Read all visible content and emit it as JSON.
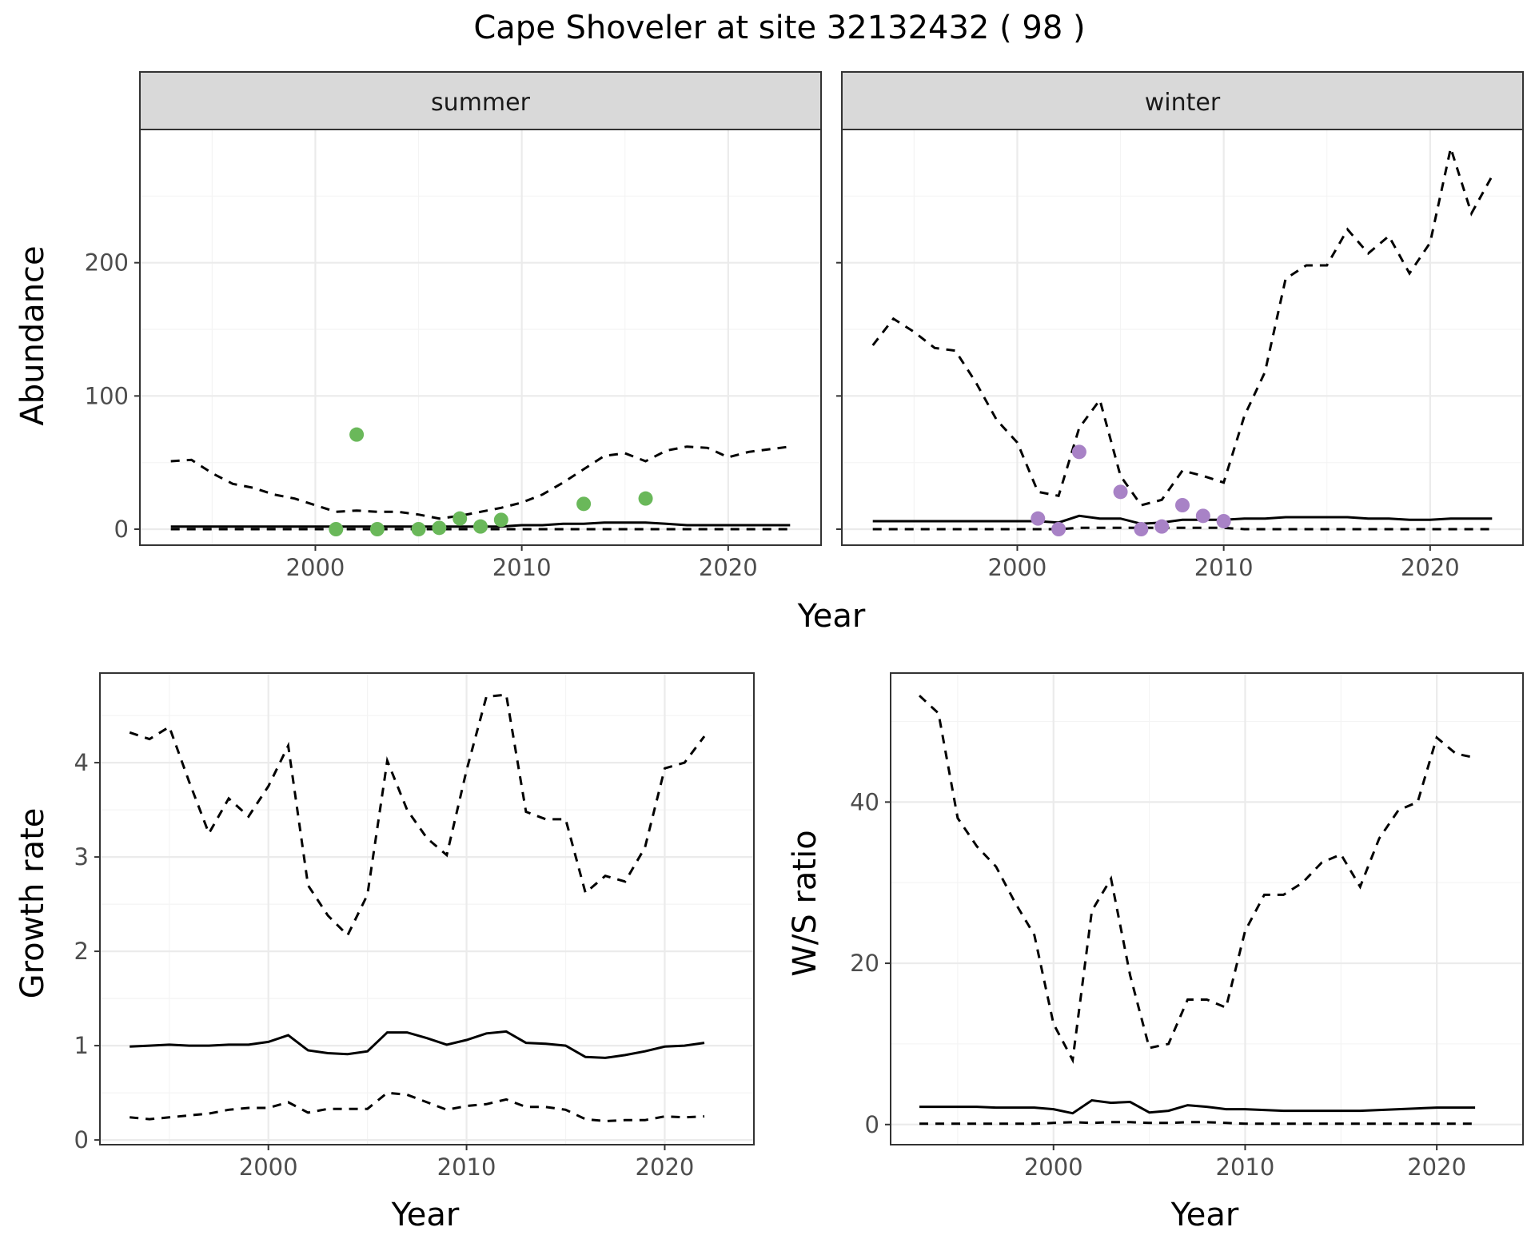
{
  "title": "Cape Shoveler at site 32132432 ( 98 )",
  "colors": {
    "summer_points": "#6ab85a",
    "winter_points": "#a882c6",
    "lines": "#000000",
    "strip": "#d9d9d9"
  },
  "line_styles": {
    "estimate": "solid",
    "interval": "dashed"
  },
  "top_axes": {
    "xlabel": "Year",
    "ylabel": "Abundance"
  },
  "chart_data": [
    {
      "id": "abundance-summer",
      "type": "line",
      "facet": "summer",
      "xlabel": "",
      "ylabel": "Abundance",
      "xlim": [
        1991.5,
        2024.5
      ],
      "ylim": [
        -12,
        300
      ],
      "x_ticks": [
        2000,
        2010,
        2020
      ],
      "y_ticks": [
        0,
        100,
        200
      ],
      "x": [
        1993,
        1994,
        1995,
        1996,
        1997,
        1998,
        1999,
        2000,
        2001,
        2002,
        2003,
        2004,
        2005,
        2006,
        2007,
        2008,
        2009,
        2010,
        2011,
        2012,
        2013,
        2014,
        2015,
        2016,
        2017,
        2018,
        2019,
        2020,
        2021,
        2022,
        2023
      ],
      "series": [
        {
          "style": "dashed",
          "values": [
            51,
            52,
            42,
            34,
            31,
            26,
            23,
            18,
            13,
            14,
            13,
            13,
            11,
            8,
            10,
            13,
            16,
            20,
            26,
            35,
            45,
            55,
            57,
            51,
            59,
            62,
            61,
            54,
            58,
            60,
            62
          ]
        },
        {
          "style": "solid",
          "values": [
            2,
            2,
            2,
            2,
            2,
            2,
            2,
            2,
            2,
            2,
            2,
            2,
            2,
            2,
            2,
            2,
            2,
            3,
            3,
            4,
            4,
            5,
            5,
            5,
            4,
            3,
            3,
            3,
            3,
            3,
            3
          ]
        },
        {
          "style": "dashed",
          "values": [
            0,
            0,
            0,
            0,
            0,
            0,
            0,
            0,
            0,
            0,
            0,
            0,
            0,
            0,
            0,
            0,
            0,
            0,
            0,
            0,
            0,
            0,
            0,
            0,
            0,
            0,
            0,
            0,
            0,
            0,
            0
          ]
        }
      ],
      "points": {
        "x": [
          2001,
          2002,
          2003,
          2005,
          2006,
          2007,
          2008,
          2009,
          2013,
          2016
        ],
        "y": [
          0,
          71,
          0,
          0,
          1,
          8,
          2,
          7,
          19,
          23
        ]
      }
    },
    {
      "id": "abundance-winter",
      "type": "line",
      "facet": "winter",
      "xlabel": "",
      "ylabel": "",
      "xlim": [
        1991.5,
        2024.5
      ],
      "ylim": [
        -12,
        300
      ],
      "x_ticks": [
        2000,
        2010,
        2020
      ],
      "y_ticks": [
        0,
        100,
        200
      ],
      "x": [
        1993,
        1994,
        1995,
        1996,
        1997,
        1998,
        1999,
        2000,
        2001,
        2002,
        2003,
        2004,
        2005,
        2006,
        2007,
        2008,
        2009,
        2010,
        2011,
        2012,
        2013,
        2014,
        2015,
        2016,
        2017,
        2018,
        2019,
        2020,
        2021,
        2022,
        2023
      ],
      "series": [
        {
          "style": "dashed",
          "values": [
            138,
            158,
            148,
            136,
            134,
            110,
            82,
            65,
            28,
            25,
            76,
            97,
            40,
            18,
            22,
            44,
            40,
            35,
            85,
            118,
            188,
            198,
            198,
            225,
            207,
            220,
            192,
            215,
            286,
            237,
            265
          ]
        },
        {
          "style": "solid",
          "values": [
            6,
            6,
            6,
            6,
            6,
            6,
            6,
            6,
            6,
            5,
            10,
            8,
            8,
            4,
            5,
            7,
            7,
            7,
            8,
            8,
            9,
            9,
            9,
            9,
            8,
            8,
            7,
            7,
            8,
            8,
            8
          ]
        },
        {
          "style": "dashed",
          "values": [
            0,
            0,
            0,
            0,
            0,
            0,
            0,
            0,
            0,
            0,
            1,
            1,
            1,
            1,
            1,
            1,
            1,
            1,
            0,
            0,
            0,
            0,
            0,
            0,
            0,
            0,
            0,
            0,
            0,
            0,
            0
          ]
        }
      ],
      "points": {
        "x": [
          2001,
          2002,
          2003,
          2005,
          2006,
          2007,
          2008,
          2009,
          2010
        ],
        "y": [
          8,
          0,
          58,
          28,
          0,
          2,
          18,
          10,
          6
        ]
      }
    },
    {
      "id": "growth-rate",
      "type": "line",
      "xlabel": "Year",
      "ylabel": "Growth rate",
      "xlim": [
        1991.5,
        2024.5
      ],
      "ylim": [
        -0.05,
        4.95
      ],
      "x_ticks": [
        2000,
        2010,
        2020
      ],
      "y_ticks": [
        0,
        1,
        2,
        3,
        4
      ],
      "x": [
        1993,
        1994,
        1995,
        1996,
        1997,
        1998,
        1999,
        2000,
        2001,
        2002,
        2003,
        2004,
        2005,
        2006,
        2007,
        2008,
        2009,
        2010,
        2011,
        2012,
        2013,
        2014,
        2015,
        2016,
        2017,
        2018,
        2019,
        2020,
        2021,
        2022
      ],
      "series": [
        {
          "style": "dashed",
          "values": [
            4.32,
            4.25,
            4.38,
            3.8,
            3.25,
            3.62,
            3.43,
            3.75,
            4.18,
            2.7,
            2.38,
            2.17,
            2.6,
            4.02,
            3.5,
            3.2,
            3.02,
            3.92,
            4.7,
            4.72,
            3.48,
            3.4,
            3.4,
            2.62,
            2.8,
            2.74,
            3.1,
            3.94,
            4.0,
            4.28
          ]
        },
        {
          "style": "solid",
          "values": [
            0.99,
            1.0,
            1.01,
            1.0,
            1.0,
            1.01,
            1.01,
            1.04,
            1.11,
            0.95,
            0.92,
            0.91,
            0.94,
            1.14,
            1.14,
            1.08,
            1.01,
            1.06,
            1.13,
            1.15,
            1.03,
            1.02,
            1.0,
            0.88,
            0.87,
            0.9,
            0.94,
            0.99,
            1.0,
            1.03
          ]
        },
        {
          "style": "dashed",
          "values": [
            0.24,
            0.22,
            0.24,
            0.26,
            0.28,
            0.32,
            0.34,
            0.34,
            0.4,
            0.29,
            0.33,
            0.33,
            0.33,
            0.5,
            0.48,
            0.4,
            0.32,
            0.36,
            0.38,
            0.43,
            0.35,
            0.35,
            0.32,
            0.22,
            0.2,
            0.21,
            0.21,
            0.25,
            0.24,
            0.25
          ]
        }
      ]
    },
    {
      "id": "ws-ratio",
      "type": "line",
      "xlabel": "Year",
      "ylabel": "W/S ratio",
      "xlim": [
        1991.5,
        2024.5
      ],
      "ylim": [
        -2.5,
        56
      ],
      "x_ticks": [
        2000,
        2010,
        2020
      ],
      "y_ticks": [
        0,
        20,
        40
      ],
      "x": [
        1993,
        1994,
        1995,
        1996,
        1997,
        1998,
        1999,
        2000,
        2001,
        2002,
        2003,
        2004,
        2005,
        2006,
        2007,
        2008,
        2009,
        2010,
        2011,
        2012,
        2013,
        2014,
        2015,
        2016,
        2017,
        2018,
        2019,
        2020,
        2021,
        2022
      ],
      "series": [
        {
          "style": "dashed",
          "values": [
            53.2,
            51,
            38,
            34.5,
            32,
            27.5,
            23.5,
            12.5,
            8,
            26.5,
            30.5,
            18.5,
            9.5,
            10,
            15.5,
            15.5,
            14.5,
            24,
            28.5,
            28.5,
            30,
            32.5,
            33.5,
            29.5,
            35.5,
            39,
            40,
            48,
            46,
            45.5
          ]
        },
        {
          "style": "solid",
          "values": [
            2.2,
            2.2,
            2.2,
            2.2,
            2.1,
            2.1,
            2.1,
            1.9,
            1.4,
            3.0,
            2.7,
            2.8,
            1.5,
            1.7,
            2.4,
            2.2,
            1.9,
            1.9,
            1.8,
            1.7,
            1.7,
            1.7,
            1.7,
            1.7,
            1.8,
            1.9,
            2.0,
            2.1,
            2.1,
            2.1
          ]
        },
        {
          "style": "dashed",
          "values": [
            0.1,
            0.1,
            0.1,
            0.1,
            0.1,
            0.1,
            0.1,
            0.2,
            0.3,
            0.2,
            0.3,
            0.3,
            0.2,
            0.2,
            0.3,
            0.3,
            0.2,
            0.1,
            0.1,
            0.1,
            0.1,
            0.1,
            0.1,
            0.1,
            0.1,
            0.1,
            0.1,
            0.1,
            0.1,
            0.1
          ]
        }
      ]
    }
  ]
}
